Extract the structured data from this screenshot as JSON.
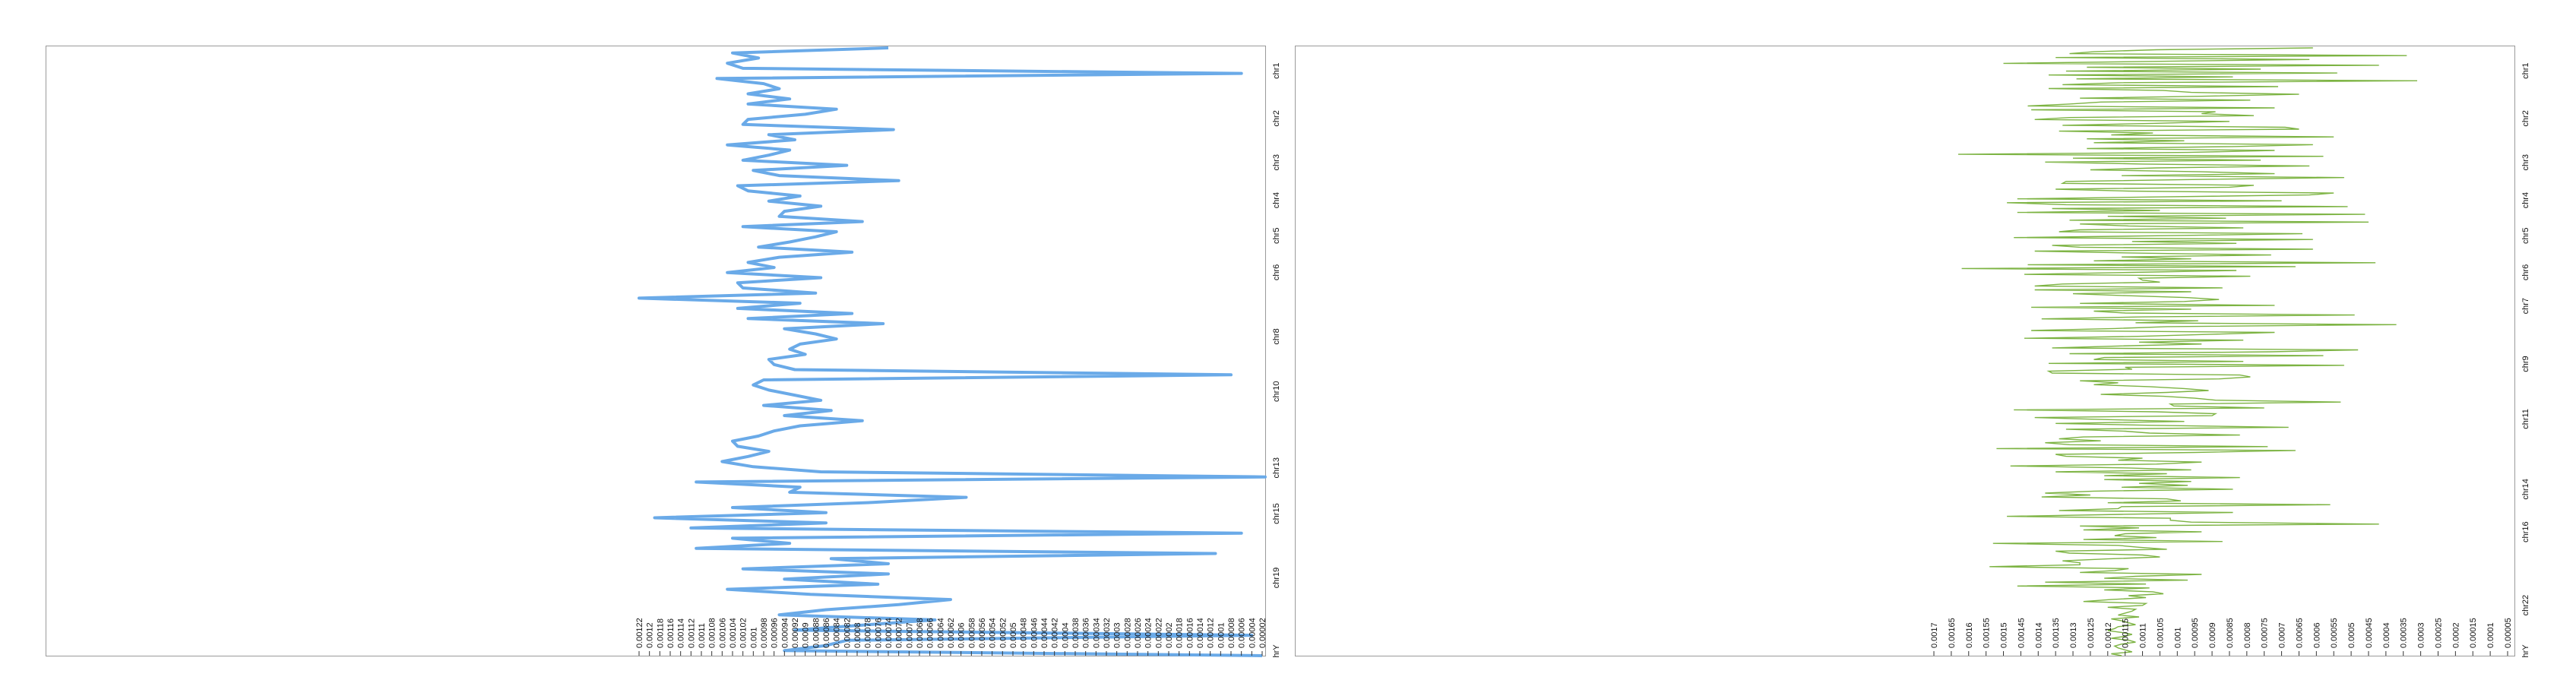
{
  "chart_data": [
    {
      "type": "line",
      "orientation": "vertical",
      "color": "#6aaae8",
      "xlim": [
        0.00122,
        2e-05
      ],
      "x_ticks": [
        "0.00122",
        "0.0012",
        "0.00118",
        "0.00116",
        "0.00114",
        "0.00112",
        "0.0011",
        "0.00108",
        "0.00106",
        "0.00104",
        "0.00102",
        "0.001",
        "0.00098",
        "0.00096",
        "0.00094",
        "0.00092",
        "0.0009",
        "0.00088",
        "0.00086",
        "0.00084",
        "0.00082",
        "0.0008",
        "0.00078",
        "0.00076",
        "0.00074",
        "0.00072",
        "0.0007",
        "0.00068",
        "0.00066",
        "0.00064",
        "0.00062",
        "0.0006",
        "0.00058",
        "0.00056",
        "0.00054",
        "0.00052",
        "0.0005",
        "0.00048",
        "0.00046",
        "0.00044",
        "0.00042",
        "0.0004",
        "0.00038",
        "0.00036",
        "0.00034",
        "0.00032",
        "0.0003",
        "0.00028",
        "0.00026",
        "0.00024",
        "0.00022",
        "0.0002",
        "0.00018",
        "0.00016",
        "0.00014",
        "0.00012",
        "0.0001",
        "0.00008",
        "0.00006",
        "0.00004",
        "0.00002"
      ],
      "chromosomes": [
        {
          "label": "chr1",
          "pos": 0.04
        },
        {
          "label": "chr2",
          "pos": 0.118
        },
        {
          "label": "chr3",
          "pos": 0.19
        },
        {
          "label": "chr4",
          "pos": 0.252
        },
        {
          "label": "chr5",
          "pos": 0.31
        },
        {
          "label": "chr6",
          "pos": 0.37
        },
        {
          "label": "chr8",
          "pos": 0.475
        },
        {
          "label": "chr10",
          "pos": 0.565
        },
        {
          "label": "chr13",
          "pos": 0.69
        },
        {
          "label": "chr15",
          "pos": 0.765
        },
        {
          "label": "chr19",
          "pos": 0.87
        },
        {
          "label": "hrY",
          "pos": 0.99
        }
      ],
      "values": [
        0.00074,
        0.00104,
        0.00099,
        0.00105,
        0.00102,
        6e-05,
        0.00107,
        0.00098,
        0.00095,
        0.00101,
        0.00093,
        0.00101,
        0.00084,
        0.0009,
        0.00101,
        0.00102,
        0.00073,
        0.00097,
        0.00092,
        0.00105,
        0.00093,
        0.00097,
        0.00102,
        0.00082,
        0.001,
        0.00095,
        0.00072,
        0.00103,
        0.00101,
        0.00091,
        0.00097,
        0.00087,
        0.00094,
        0.00095,
        0.00079,
        0.00102,
        0.00084,
        0.00088,
        0.00093,
        0.00099,
        0.00081,
        0.00095,
        0.00101,
        0.00096,
        0.00105,
        0.00087,
        0.00103,
        0.00102,
        0.00088,
        0.00122,
        0.00091,
        0.00103,
        0.00081,
        0.00101,
        0.00075,
        0.00094,
        0.00088,
        0.00084,
        0.00091,
        0.00093,
        0.0009,
        0.00097,
        0.00096,
        0.00092,
        8e-05,
        0.00098,
        0.001,
        0.00097,
        0.00092,
        0.00087,
        0.00098,
        0.00085,
        0.00094,
        0.00079,
        0.00091,
        0.00096,
        0.00099,
        0.00104,
        0.00103,
        0.00097,
        0.00101,
        0.00106,
        0.001,
        0.00087,
        1e-05,
        0.00111,
        0.00091,
        0.00093,
        0.00059,
        0.00077,
        0.00104,
        0.00086,
        0.00119,
        0.00086,
        0.00112,
        6e-05,
        0.00104,
        0.00093,
        0.00111,
        0.00011,
        0.00085,
        0.00074,
        0.00102,
        0.00074,
        0.00094,
        0.00076,
        0.00105,
        0.00089,
        0.00062,
        0.00072,
        0.00086,
        0.00095,
        0.00065,
        0.00079,
        0.00092,
        4e-05,
        0.00082,
        0.00086,
        0.00094,
        2e-05
      ]
    },
    {
      "type": "line",
      "orientation": "vertical",
      "color": "#7cb342",
      "xlim": [
        0.0017,
        5e-05
      ],
      "x_ticks": [
        "0.0017",
        "0.00165",
        "0.0016",
        "0.00155",
        "0.0015",
        "0.00145",
        "0.0014",
        "0.00135",
        "0.0013",
        "0.00125",
        "0.0012",
        "0.00115",
        "0.0011",
        "0.00105",
        "0.001",
        "0.00095",
        "0.0009",
        "0.00085",
        "0.0008",
        "0.00075",
        "0.0007",
        "0.00065",
        "0.0006",
        "0.00055",
        "0.0005",
        "0.00045",
        "0.0004",
        "0.00035",
        "0.0003",
        "0.00025",
        "0.0002",
        "0.00015",
        "0.0001",
        "0.00005"
      ],
      "chromosomes": [
        {
          "label": "chr1",
          "pos": 0.04
        },
        {
          "label": "chr2",
          "pos": 0.118
        },
        {
          "label": "chr3",
          "pos": 0.19
        },
        {
          "label": "chr4",
          "pos": 0.252
        },
        {
          "label": "chr5",
          "pos": 0.31
        },
        {
          "label": "chr6",
          "pos": 0.37
        },
        {
          "label": "chr7",
          "pos": 0.425
        },
        {
          "label": "chr9",
          "pos": 0.52
        },
        {
          "label": "chr11",
          "pos": 0.61
        },
        {
          "label": "chr14",
          "pos": 0.725
        },
        {
          "label": "chr16",
          "pos": 0.795
        },
        {
          "label": "chr22",
          "pos": 0.915
        },
        {
          "label": "hrY",
          "pos": 0.99
        }
      ],
      "values": [
        0.00061,
        0.00106,
        0.00124,
        0.00131,
        0.00034,
        0.00135,
        0.00062,
        0.00107,
        0.0015,
        0.00042,
        0.00126,
        0.00076,
        0.00132,
        0.00054,
        0.00137,
        0.00084,
        0.00129,
        0.00031,
        0.00117,
        0.00133,
        0.00071,
        0.00137,
        0.00104,
        0.00096,
        0.00065,
        0.00093,
        0.00128,
        0.00079,
        0.00122,
        0.00131,
        0.00143,
        0.00072,
        0.00142,
        0.00089,
        0.00093,
        0.00078,
        0.00131,
        0.00141,
        0.00085,
        0.00107,
        0.00133,
        0.00069,
        0.00065,
        0.00134,
        0.00107,
        0.00119,
        0.00055,
        0.00126,
        0.00098,
        0.00124,
        0.00061,
        0.00084,
        0.00126,
        0.00072,
        0.00097,
        0.00163,
        0.00058,
        0.0013,
        0.00076,
        0.00138,
        0.0011,
        0.00062,
        0.00106,
        0.00125,
        0.00093,
        0.00072,
        0.00116,
        0.00052,
        0.00094,
        0.00132,
        0.00133,
        0.00078,
        0.00085,
        0.00135,
        0.00114,
        0.00055,
        0.00062,
        0.00106,
        0.00146,
        0.0007,
        0.00149,
        0.00132,
        0.00051,
        0.00136,
        0.00105,
        0.00146,
        0.00046,
        0.0012,
        0.00086,
        0.00131,
        0.00045,
        0.00128,
        0.00114,
        0.00081,
        0.00128,
        0.00134,
        0.00064,
        0.00102,
        0.00147,
        0.00061,
        0.00113,
        0.00083,
        0.00136,
        0.00128,
        0.00061,
        0.00141,
        0.00112,
        0.00073,
        0.00116,
        0.00096,
        0.00124,
        0.00043,
        0.00143,
        0.00066,
        0.00162,
        0.00083,
        0.00113,
        0.00144,
        0.00079,
        0.00111,
        0.0011,
        0.00105,
        0.00133,
        0.00141,
        0.00087,
        0.00141,
        0.00096,
        0.0013,
        0.00115,
        0.00097,
        0.00088,
        0.00098,
        0.00128,
        0.00072,
        0.00142,
        0.00096,
        0.00124,
        0.00115,
        0.00049,
        0.0011,
        0.00139,
        0.00094,
        0.00112,
        0.00037,
        0.00103,
        0.00118,
        0.00142,
        0.00072,
        0.00091,
        0.0011,
        0.00144,
        0.00081,
        0.00111,
        0.00093,
        0.00117,
        0.00136,
        0.00048,
        0.00073,
        0.00131,
        0.00058,
        0.00121,
        0.00124,
        0.00081,
        0.00137,
        0.00052,
        0.00115,
        0.00113,
        0.00137,
        0.00136,
        0.00082,
        0.00079,
        0.00088,
        0.00128,
        0.00117,
        0.00124,
        0.00108,
        0.00098,
        0.00091,
        0.00103,
        0.00122,
        0.00104,
        0.00095,
        0.00089,
        0.00053,
        0.00102,
        0.00101,
        0.00075,
        0.00147,
        0.00106,
        0.00089,
        0.0009,
        0.00141,
        0.00121,
        0.00098,
        0.00135,
        0.00107,
        0.00068,
        0.00132,
        0.00115,
        0.00108,
        0.00082,
        0.00127,
        0.00134,
        0.00122,
        0.00138,
        0.00131,
        0.00074,
        0.00152,
        0.00066,
        0.00095,
        0.00135,
        0.00132,
        0.0011,
        0.00117,
        0.00093,
        0.00106,
        0.00148,
        0.00114,
        0.00096,
        0.00135,
        0.00103,
        0.00121,
        0.00082,
        0.00121,
        0.00096,
        0.00111,
        0.00097,
        0.00116,
        0.00084,
        0.00124,
        0.00138,
        0.00125,
        0.00139,
        0.00103,
        0.00099,
        0.0012,
        0.00056,
        0.00116,
        0.00117,
        0.00134,
        0.00084,
        0.00116,
        0.00149,
        0.00102,
        0.00102,
        0.00096,
        0.00042,
        0.00128,
        0.00111,
        0.00127,
        0.00093,
        0.00115,
        0.00118,
        0.00106,
        0.00127,
        0.00087,
        0.00153,
        0.00117,
        0.00111,
        0.00103,
        0.00135,
        0.00131,
        0.0011,
        0.00105,
        0.0012,
        0.00133,
        0.00128,
        0.00128,
        0.00154,
        0.00114,
        0.00118,
        0.00128,
        0.00093,
        0.00112,
        0.00121,
        0.00097,
        0.00138,
        0.00109,
        0.00146,
        0.00108,
        0.00121,
        0.00107,
        0.00104,
        0.00114,
        0.00109,
        0.00119,
        0.00127,
        0.00109,
        0.0011,
        0.0012,
        0.00112,
        0.00113,
        0.00115,
        0.00117,
        0.00111,
        0.00119,
        0.00116,
        0.00114,
        0.00112,
        0.00117,
        0.00118,
        0.0012,
        0.00116,
        0.00113,
        0.00115,
        0.00119,
        0.00114,
        0.00112,
        0.00116,
        0.00118,
        0.00117,
        0.00115,
        0.00113,
        0.00119,
        0.00116
      ]
    }
  ]
}
